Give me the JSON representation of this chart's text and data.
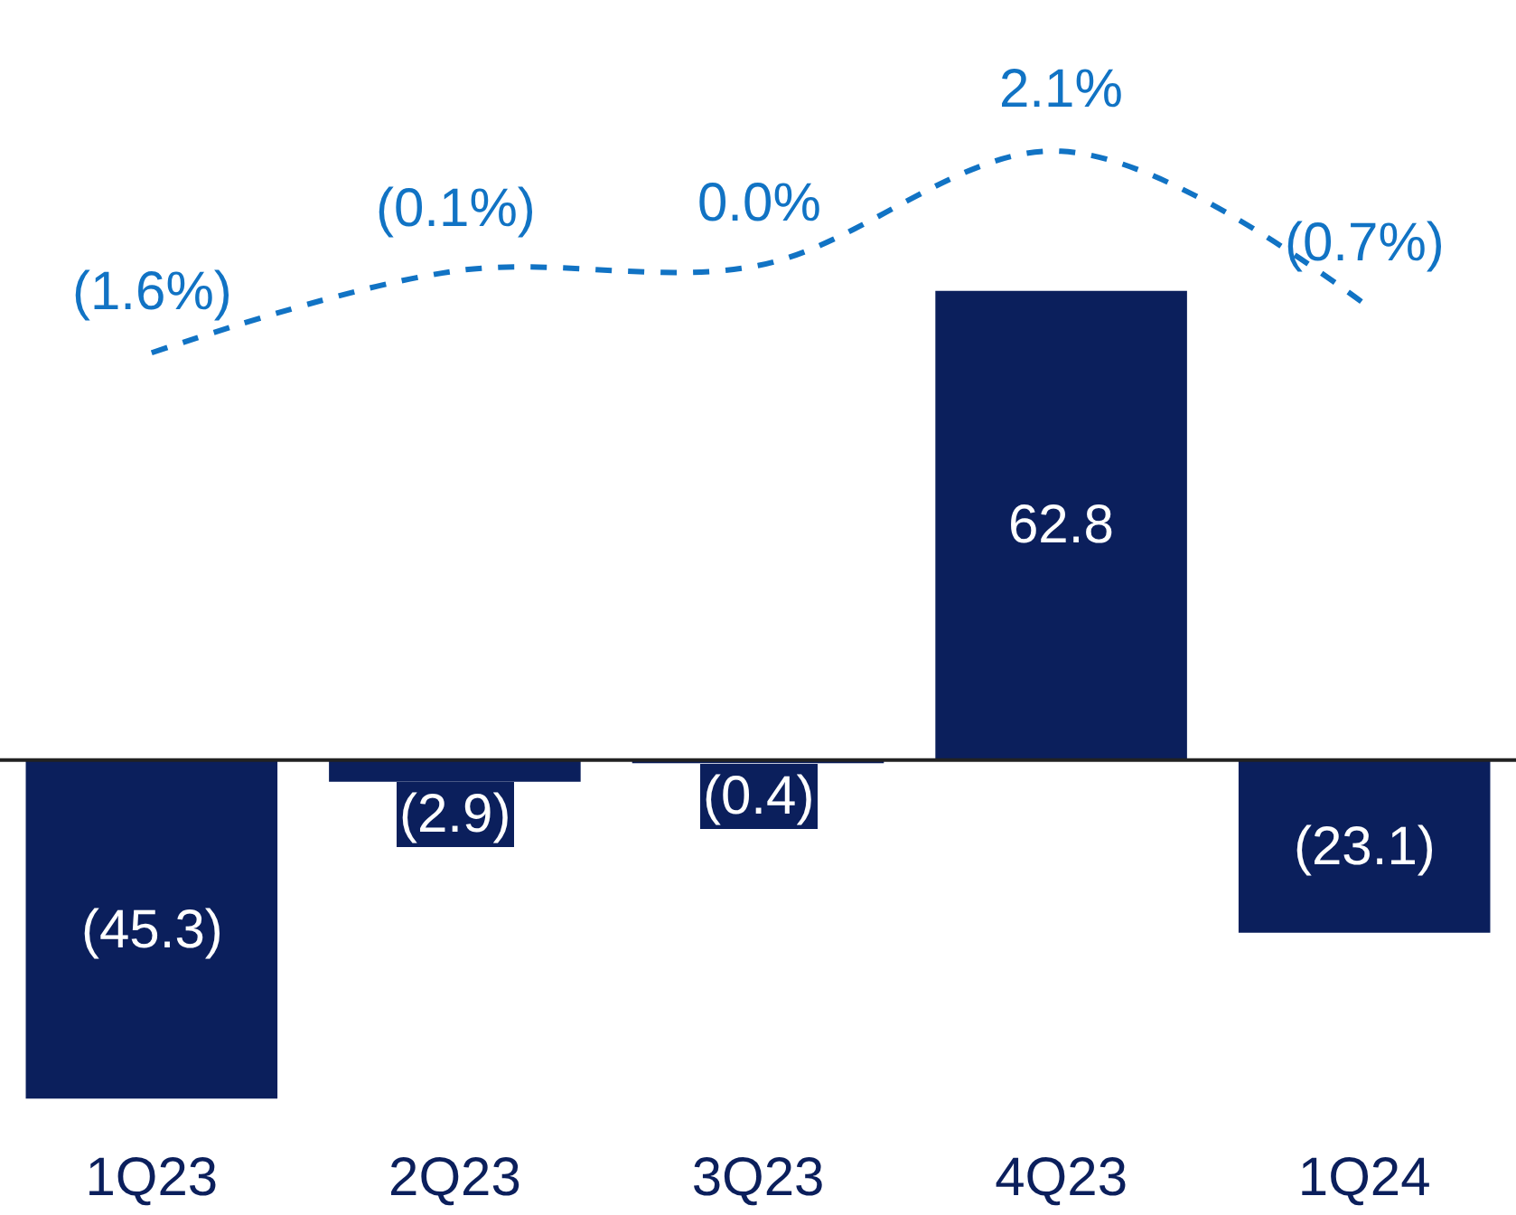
{
  "chart_data": {
    "type": "bar",
    "categories": [
      "1Q23",
      "2Q23",
      "3Q23",
      "4Q23",
      "1Q24"
    ],
    "tick_labels": "x",
    "ref_lines": [
      {
        "axis": "y",
        "value": 0,
        "color": "#222222"
      }
    ],
    "series": [
      {
        "color": "#0b1f5c",
        "values": [
          -45.3,
          -2.9,
          -0.4,
          62.8,
          -23.1
        ],
        "value_labels": [
          "(45.3)",
          "(2.9)",
          "(0.4)",
          "62.8",
          "(23.1)"
        ]
      },
      {
        "type": "line",
        "axis": "y2",
        "color": "#1173c4",
        "line_style": "dashed",
        "marker": "none",
        "values": [
          -1.6,
          -0.1,
          0.0,
          2.1,
          -0.7
        ],
        "value_labels": [
          "(1.6%)",
          "(0.1%)",
          "0.0%",
          "2.1%",
          "(0.7%)"
        ]
      }
    ]
  }
}
